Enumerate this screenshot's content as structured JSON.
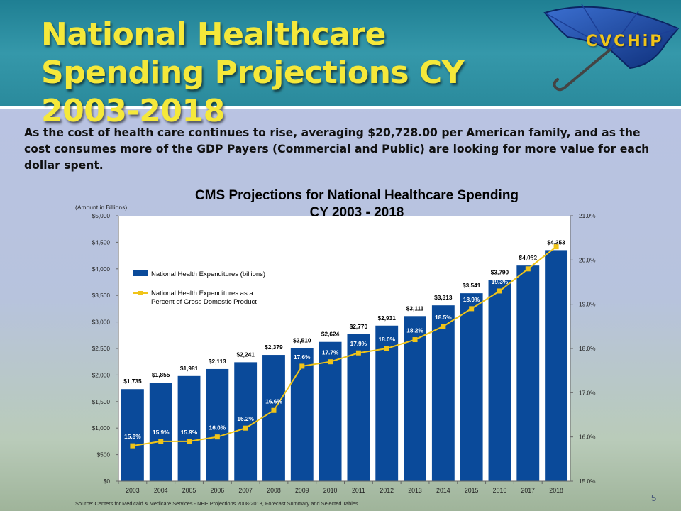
{
  "slide": {
    "title": "National Healthcare Spending Projections CY 2003-2018",
    "intro": "As the cost of health care continues to rise, averaging  $20,728.00 per American family, and as the cost consumes more of the GDP Payers  (Commercial and Public) are looking for more value for each dollar spent.",
    "logo_text": "CVCHiP",
    "page_number": "5"
  },
  "chart_data": {
    "type": "bar",
    "title_line1": "CMS Projections for National Healthcare Spending",
    "title_line2": "CY 2003 - 2018",
    "unit_label": "(Amount in Billions)",
    "source": "Source:  Centers for Medicaid & Medicare Services - NHE Projections 2008-2018, Forecast Summary and Selected Tables",
    "categories": [
      "2003",
      "2004",
      "2005",
      "2006",
      "2007",
      "2008",
      "2009",
      "2010",
      "2011",
      "2012",
      "2013",
      "2014",
      "2015",
      "2016",
      "2017",
      "2018"
    ],
    "y_left": {
      "min": 0,
      "max": 5000,
      "step": 500,
      "ticks": [
        "$0",
        "$500",
        "$1,000",
        "$1,500",
        "$2,000",
        "$2,500",
        "$3,000",
        "$3,500",
        "$4,000",
        "$4,500",
        "$5,000"
      ]
    },
    "y_right": {
      "min": 15.0,
      "max": 21.0,
      "step": 1.0,
      "ticks": [
        "15.0%",
        "16.0%",
        "17.0%",
        "18.0%",
        "19.0%",
        "20.0%",
        "21.0%"
      ]
    },
    "series": [
      {
        "name": "National Health Expenditures (billions)",
        "type": "bar",
        "axis": "left",
        "color": "#0a4a9a",
        "values": [
          1735,
          1855,
          1981,
          2113,
          2241,
          2379,
          2510,
          2624,
          2770,
          2931,
          3111,
          3313,
          3541,
          3790,
          4062,
          4353
        ],
        "labels": [
          "$1,735",
          "$1,855",
          "$1,981",
          "$2,113",
          "$2,241",
          "$2,379",
          "$2,510",
          "$2,624",
          "$2,770",
          "$2,931",
          "$3,111",
          "$3,313",
          "$3,541",
          "$3,790",
          "$4,062",
          "$4,353"
        ]
      },
      {
        "name_line1": "National Health Expenditures as a",
        "name_line2": "Percent of Gross Domestic Product",
        "type": "line",
        "axis": "right",
        "color": "#f0c419",
        "values": [
          15.8,
          15.9,
          15.9,
          16.0,
          16.2,
          16.6,
          17.6,
          17.7,
          17.9,
          18.0,
          18.2,
          18.5,
          18.9,
          19.3,
          19.8,
          20.3
        ],
        "labels": [
          "15.8%",
          "15.9%",
          "15.9%",
          "16.0%",
          "16.2%",
          "16.6%",
          "17.6%",
          "17.7%",
          "17.9%",
          "18.0%",
          "18.2%",
          "18.5%",
          "18.9%",
          "19.3%",
          "19.8%",
          "20.3%"
        ]
      }
    ],
    "grid": false,
    "legend_position": "upper-left"
  }
}
